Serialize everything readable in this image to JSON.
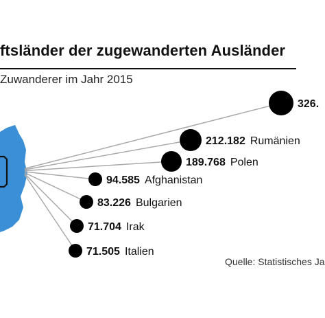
{
  "chart_data": {
    "type": "scatter",
    "title": "ftsländer der zugewanderten Ausländer",
    "subtitle": "Zuwanderer im Jahr 2015",
    "source": "Quelle: Statistisches Ja",
    "series": [
      {
        "points": [
          {
            "value": "326.",
            "country": ""
          },
          {
            "value": "212.182",
            "country": "Rumänien"
          },
          {
            "value": "189.768",
            "country": "Polen"
          },
          {
            "value": "94.585",
            "country": "Afghanistan"
          },
          {
            "value": "83.226",
            "country": "Bulgarien"
          },
          {
            "value": "71.704",
            "country": "Irak"
          },
          {
            "value": "71.505",
            "country": "Italien"
          }
        ]
      }
    ],
    "colors": {
      "map": "#3a8fd6",
      "bubble": "#000000",
      "line": "#a9a9a9",
      "text": "#111111"
    },
    "icons": [
      "germany-map-icon",
      "funnel-icon"
    ]
  }
}
